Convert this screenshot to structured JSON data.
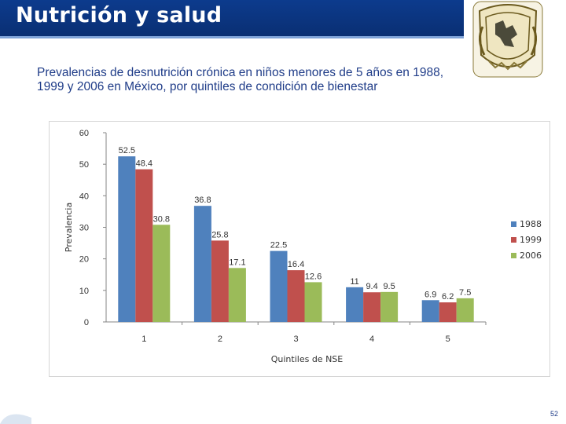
{
  "header": {
    "title": "Nutrición y salud"
  },
  "subtitle": "Prevalencias de desnutrición crónica en niños menores de 5 años en 1988, 1999 y 2006 en México, por quintiles de condición de bienestar",
  "page_number": "52",
  "logo": {
    "icon": "university-seal-icon"
  },
  "colors": {
    "header_bg": "#0c3b8d",
    "series_1988": "#4f81bd",
    "series_1999": "#c0504d",
    "series_2006": "#9bbb59"
  },
  "chart_data": {
    "type": "bar",
    "title": "",
    "xlabel": "Quintiles de NSE",
    "ylabel": "Prevalencia",
    "ylim": [
      0,
      60
    ],
    "yticks": [
      0,
      10,
      20,
      30,
      40,
      50,
      60
    ],
    "grid": false,
    "legend_position": "right",
    "categories": [
      "1",
      "2",
      "3",
      "4",
      "5"
    ],
    "series": [
      {
        "name": "1988",
        "color": "#4f81bd",
        "values": [
          52.5,
          36.8,
          22.5,
          11,
          6.9
        ],
        "labels": [
          "52.5",
          "36.8",
          "22.5",
          "11",
          "6.9"
        ]
      },
      {
        "name": "1999",
        "color": "#c0504d",
        "values": [
          48.4,
          25.8,
          16.4,
          9.4,
          6.2
        ],
        "labels": [
          "48.4",
          "25.8",
          "16.4",
          "9.4",
          "6.2"
        ]
      },
      {
        "name": "2006",
        "color": "#9bbb59",
        "values": [
          30.8,
          17.1,
          12.6,
          9.5,
          7.5
        ],
        "labels": [
          "30.8",
          "17.1",
          "12.6",
          "9.5",
          "7.5"
        ]
      }
    ]
  }
}
